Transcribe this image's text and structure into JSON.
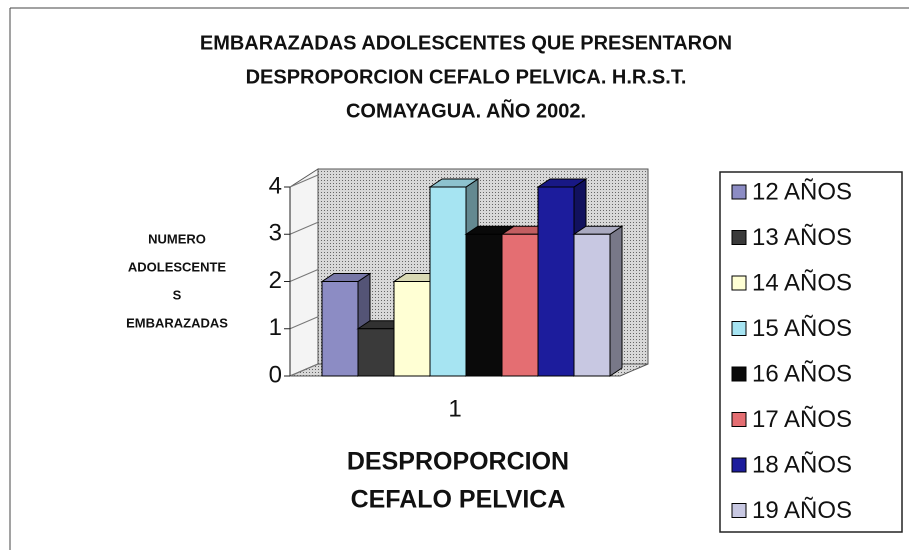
{
  "chart_data": {
    "type": "bar3d",
    "title": [
      "EMBARAZADAS ADOLESCENTES QUE PRESENTARON",
      "DESPROPORCION CEFALO PELVICA.   H.R.S.T.",
      "COMAYAGUA.   AÑO 2002."
    ],
    "y_label": [
      "NUMERO",
      "ADOLESCENTE",
      "S",
      "EMBARAZADAS"
    ],
    "x_label": [
      "DESPROPORCION",
      "CEFALO  PELVICA"
    ],
    "categories": [
      "1"
    ],
    "ylim": [
      0,
      4
    ],
    "yticks": [
      0,
      1,
      2,
      3,
      4
    ],
    "series": [
      {
        "name": "12 AÑOS",
        "color": "#8c8cc4",
        "values": [
          2
        ]
      },
      {
        "name": "13 AÑOS",
        "color": "#3a3a3a",
        "values": [
          1
        ]
      },
      {
        "name": "14 AÑOS",
        "color": "#ffffd4",
        "values": [
          2
        ]
      },
      {
        "name": "15 AÑOS",
        "color": "#a6e4f2",
        "values": [
          4
        ]
      },
      {
        "name": "16 AÑOS",
        "color": "#0a0a0a",
        "values": [
          3
        ]
      },
      {
        "name": "17 AÑOS",
        "color": "#e46e72",
        "values": [
          3
        ]
      },
      {
        "name": "18 AÑOS",
        "color": "#1c1c9c",
        "values": [
          4
        ]
      },
      {
        "name": "19 AÑOS",
        "color": "#c8c8e2",
        "values": [
          3
        ]
      }
    ],
    "legend": "right"
  }
}
